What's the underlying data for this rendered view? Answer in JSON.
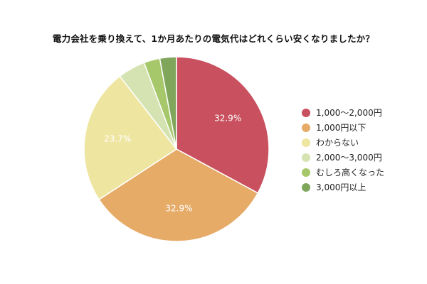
{
  "chart_data": {
    "type": "pie",
    "title": "電力会社を乗り換えて、1か月あたりの電気代はどれくらい安くなりましたか？",
    "categories": [
      "1,000〜2,000円",
      "1,000円以下",
      "わからない",
      "2,000〜3,000円",
      "むしろ高くなった",
      "3,000円以上"
    ],
    "values": [
      32.9,
      32.9,
      23.7,
      4.8,
      2.8,
      2.9
    ],
    "data_labels": [
      "32.9%",
      "32.9%",
      "23.7%",
      "",
      "",
      ""
    ],
    "colors": [
      "#c9505f",
      "#e5ab67",
      "#eee5a1",
      "#d4e3b1",
      "#a6c86a",
      "#7fa65b"
    ],
    "start_angle_deg": 0,
    "direction": "clockwise",
    "legend_position": "right"
  }
}
